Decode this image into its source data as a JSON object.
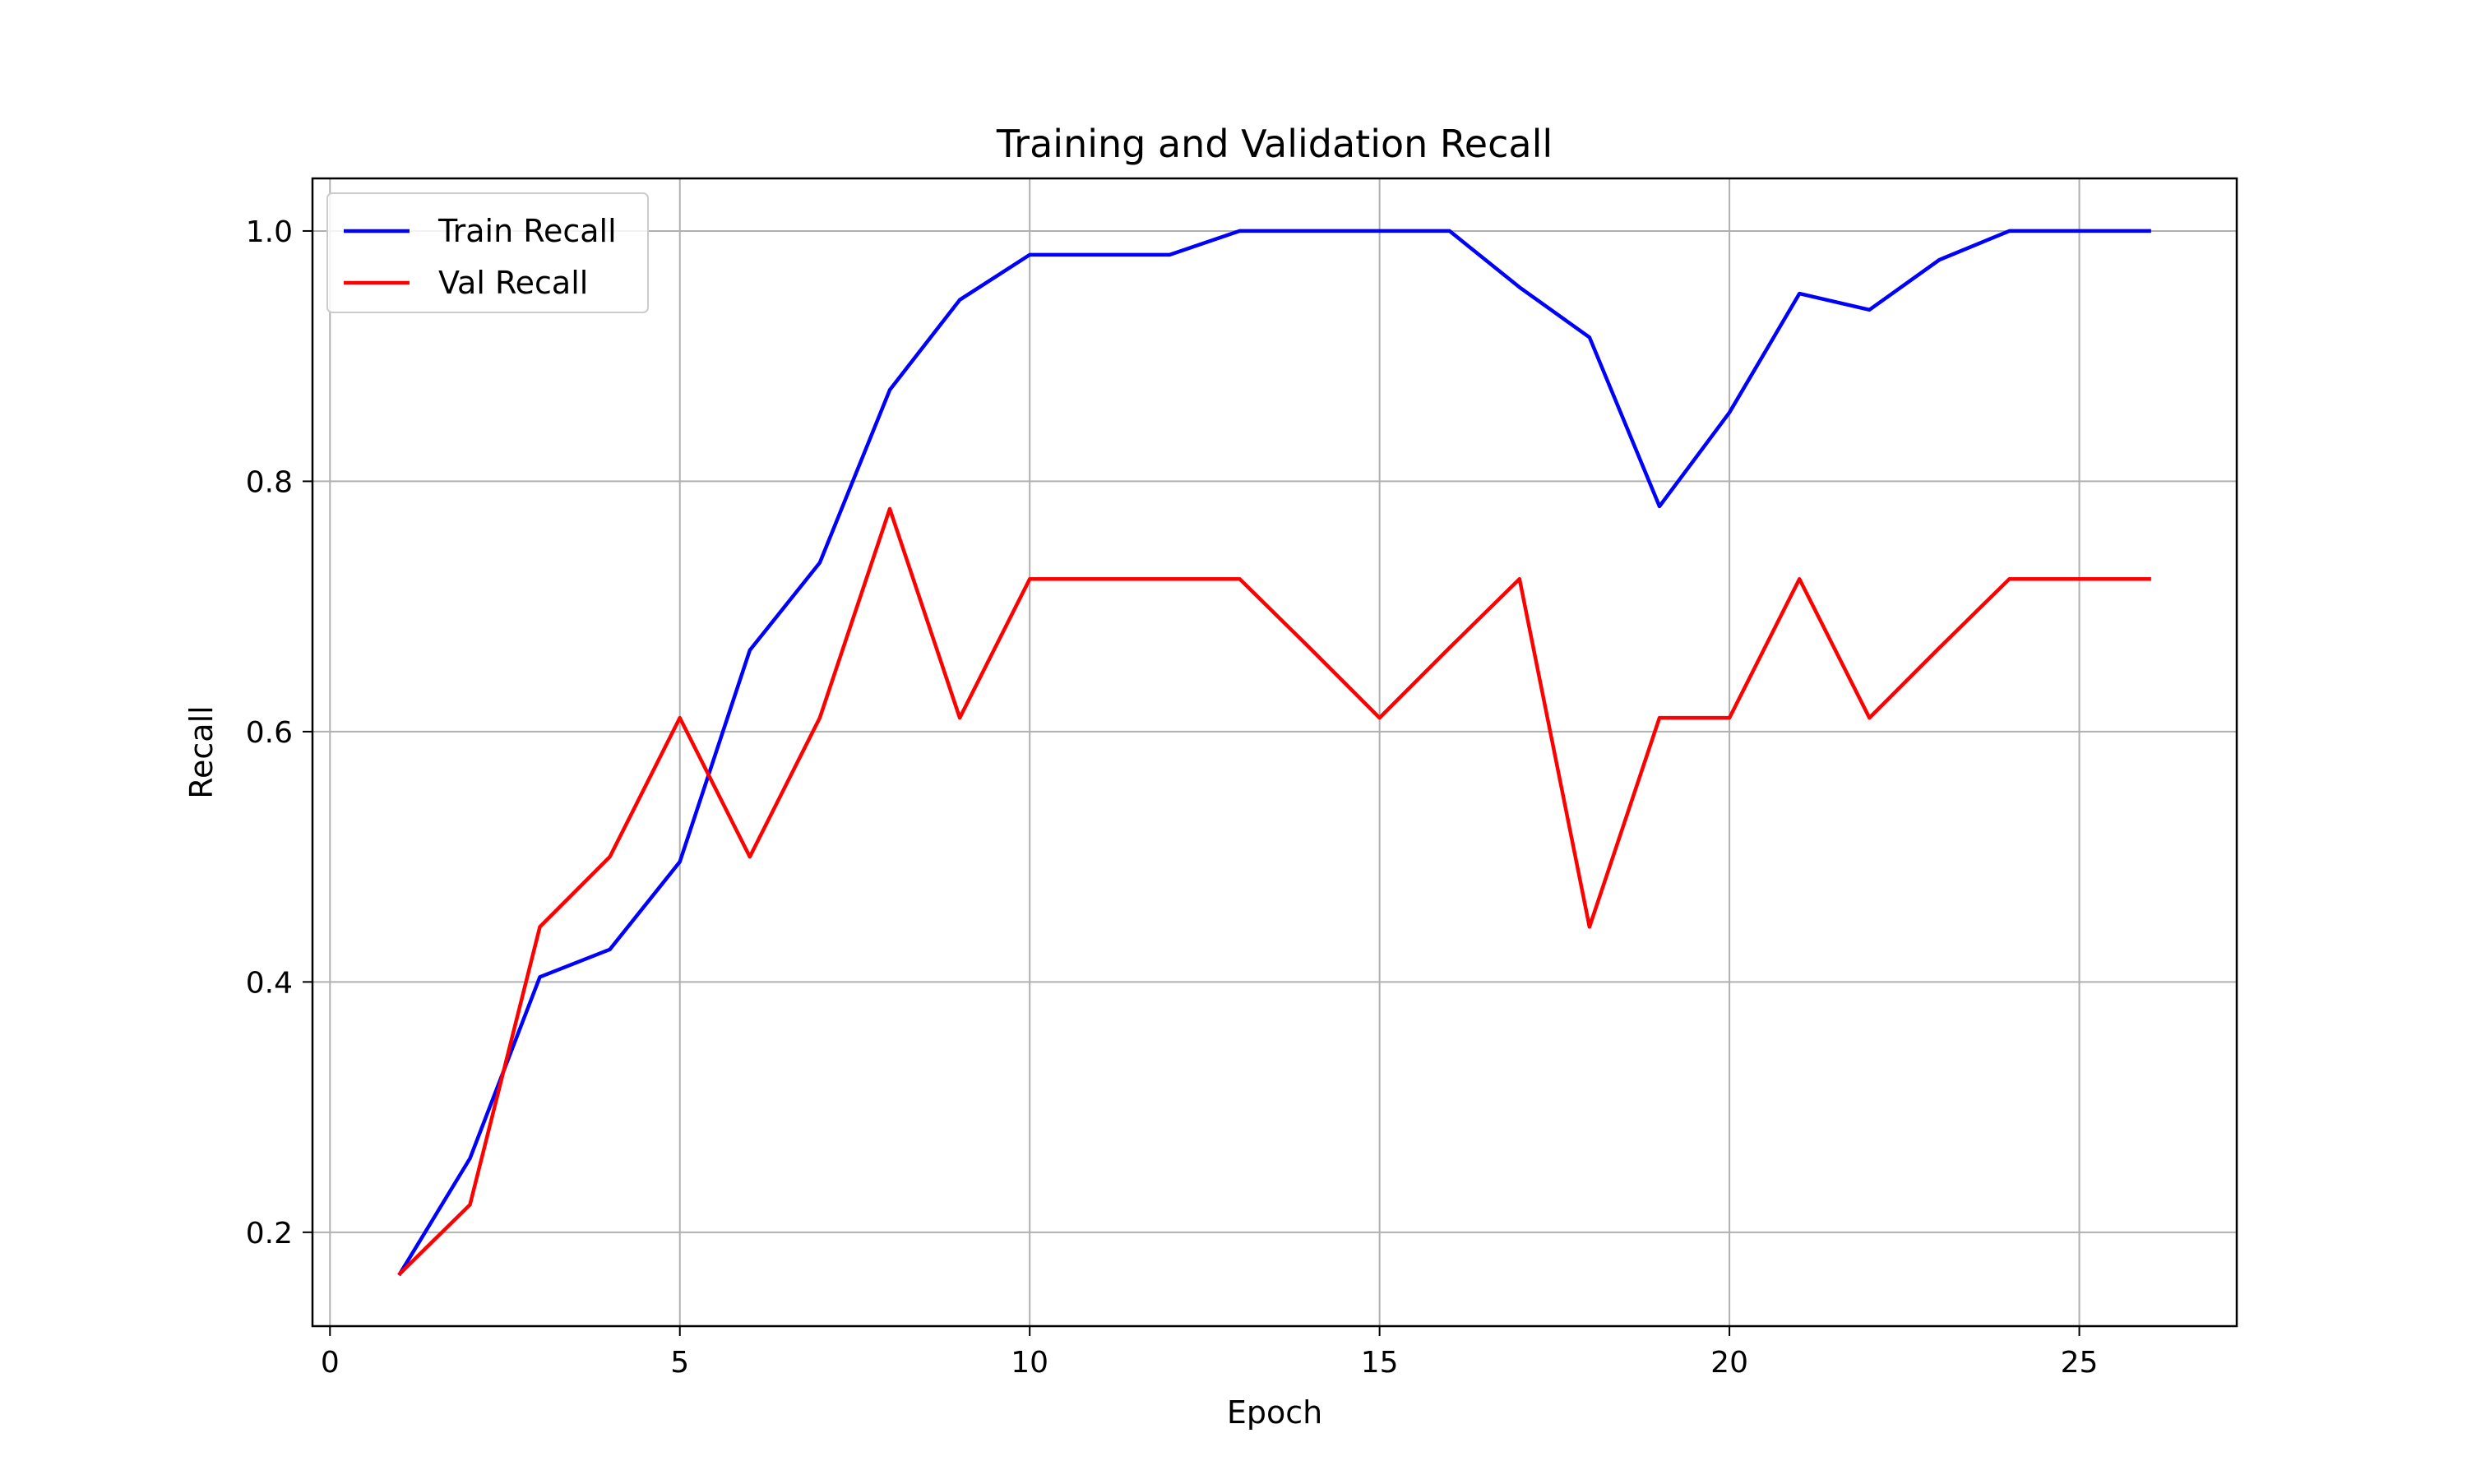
{
  "chart_data": {
    "type": "line",
    "title": "Training and Validation Recall",
    "xlabel": "Epoch",
    "ylabel": "Recall",
    "xlim": [
      -0.25,
      27.25
    ],
    "ylim": [
      0.125,
      1.042
    ],
    "xticks": [
      0,
      5,
      10,
      15,
      20,
      25
    ],
    "xtick_labels": [
      "0",
      "5",
      "10",
      "15",
      "20",
      "25"
    ],
    "yticks": [
      0.2,
      0.4,
      0.6,
      0.8,
      1.0
    ],
    "ytick_labels": [
      "0.2",
      "0.4",
      "0.6",
      "0.8",
      "1.0"
    ],
    "grid": true,
    "legend": "top-left",
    "x": [
      1,
      2,
      3,
      4,
      5,
      6,
      7,
      8,
      9,
      10,
      11,
      12,
      13,
      14,
      15,
      16,
      17,
      18,
      19,
      20,
      21,
      22,
      23,
      24,
      25,
      26
    ],
    "series": [
      {
        "name": "Train Recall",
        "color": "#0000ff",
        "values": [
          0.167,
          0.259,
          0.404,
          0.426,
          0.496,
          0.665,
          0.735,
          0.873,
          0.945,
          0.981,
          0.981,
          0.981,
          1.0,
          1.0,
          1.0,
          1.0,
          0.955,
          0.915,
          0.78,
          0.855,
          0.95,
          0.937,
          0.977,
          1.0,
          1.0,
          1.0
        ]
      },
      {
        "name": "Val Recall",
        "color": "#ff0000",
        "values": [
          0.167,
          0.222,
          0.444,
          0.5,
          0.611,
          0.5,
          0.611,
          0.778,
          0.611,
          0.722,
          0.722,
          0.722,
          0.722,
          0.667,
          0.611,
          0.667,
          0.722,
          0.444,
          0.611,
          0.611,
          0.722,
          0.611,
          0.667,
          0.722,
          0.722,
          0.722
        ]
      }
    ]
  }
}
